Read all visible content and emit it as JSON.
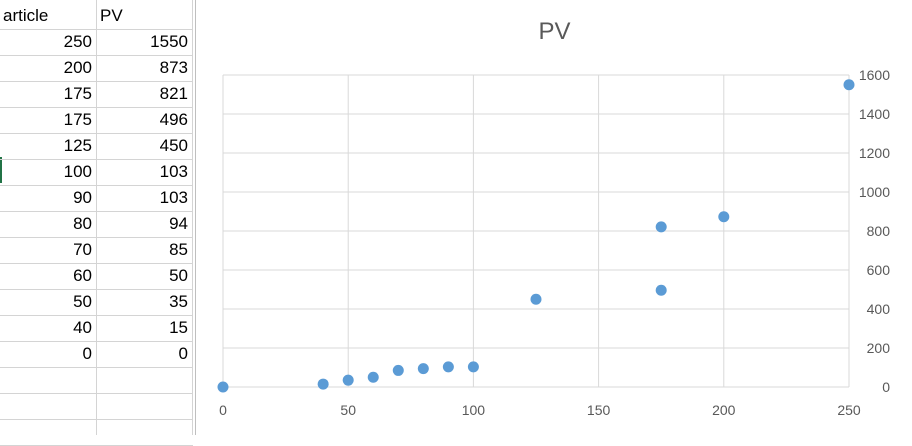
{
  "sheet": {
    "headers": [
      "article",
      "PV"
    ],
    "rows": [
      [
        "250",
        "1550"
      ],
      [
        "200",
        "873"
      ],
      [
        "175",
        "821"
      ],
      [
        "175",
        "496"
      ],
      [
        "125",
        "450"
      ],
      [
        "100",
        "103"
      ],
      [
        "90",
        "103"
      ],
      [
        "80",
        "94"
      ],
      [
        "70",
        "85"
      ],
      [
        "60",
        "50"
      ],
      [
        "50",
        "35"
      ],
      [
        "40",
        "15"
      ],
      [
        "0",
        "0"
      ]
    ]
  },
  "chart_data": {
    "type": "scatter",
    "title": "PV",
    "xlabel": "",
    "ylabel": "",
    "xlim": [
      0,
      250
    ],
    "ylim": [
      0,
      1600
    ],
    "x_ticks": [
      "0",
      "50",
      "100",
      "150",
      "200",
      "250"
    ],
    "y_ticks": [
      "0",
      "200",
      "400",
      "600",
      "800",
      "1000",
      "1200",
      "1400",
      "1600"
    ],
    "grid": true,
    "y_axis_position": "right",
    "marker_color": "#5b9bd5",
    "series": [
      {
        "x": [
          250,
          200,
          175,
          175,
          125,
          100,
          90,
          80,
          70,
          60,
          50,
          40,
          0
        ],
        "y": [
          1550,
          873,
          821,
          496,
          450,
          103,
          103,
          94,
          85,
          50,
          35,
          15,
          0
        ]
      }
    ]
  }
}
